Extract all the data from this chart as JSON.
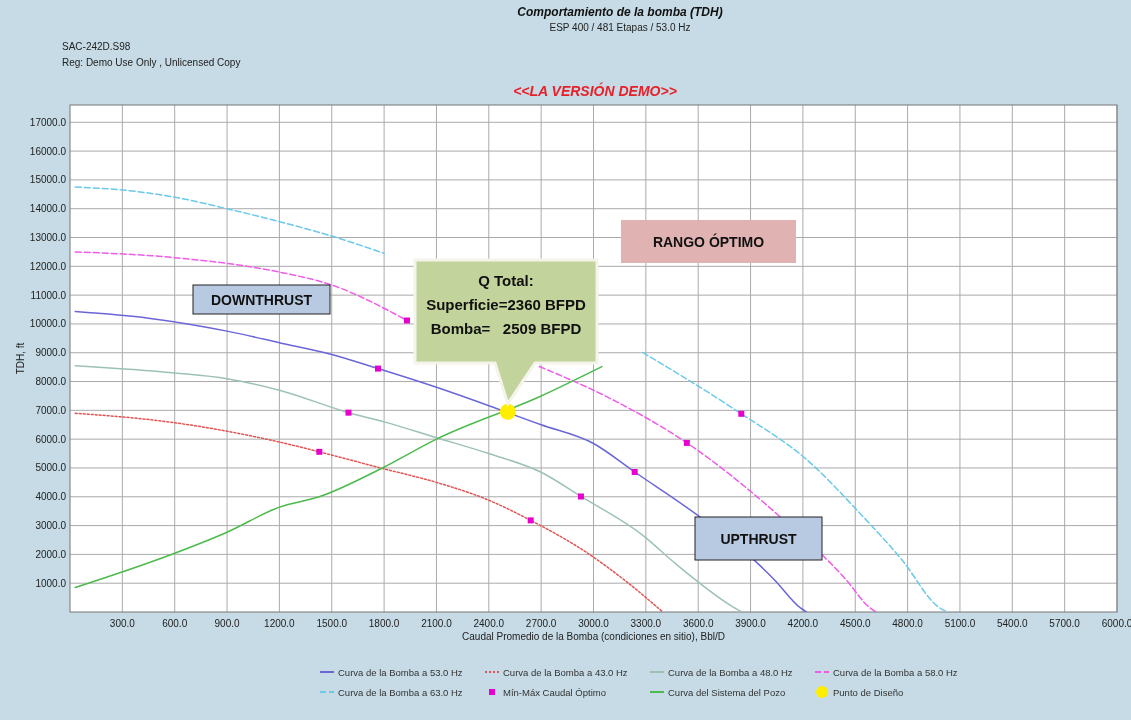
{
  "chart_data": {
    "type": "line",
    "title": "Comportamiento de la bomba (TDH)",
    "subtitle": "ESP 400 / 481 Etapas / 53.0 Hz",
    "xlabel": "Caudal Promedio de la Bomba (condiciones en sitio), Bbl/D",
    "ylabel": "TDH, ft",
    "xlim": [
      0,
      6000
    ],
    "ylim": [
      0,
      17600
    ],
    "xticks": [
      {
        "value": 300,
        "label": "300.0"
      },
      {
        "value": 600,
        "label": "600.0"
      },
      {
        "value": 900,
        "label": "900.0"
      },
      {
        "value": 1200,
        "label": "1200.0"
      },
      {
        "value": 1500,
        "label": "1500.0"
      },
      {
        "value": 1800,
        "label": "1800.0"
      },
      {
        "value": 2100,
        "label": "2100.0"
      },
      {
        "value": 2400,
        "label": "2400.0"
      },
      {
        "value": 2700,
        "label": "2700.0"
      },
      {
        "value": 3000,
        "label": "3000.0"
      },
      {
        "value": 3300,
        "label": "3300.0"
      },
      {
        "value": 3600,
        "label": "3600.0"
      },
      {
        "value": 3900,
        "label": "3900.0"
      },
      {
        "value": 4200,
        "label": "4200.0"
      },
      {
        "value": 4500,
        "label": "4500.0"
      },
      {
        "value": 4800,
        "label": "4800.0"
      },
      {
        "value": 5100,
        "label": "5100.0"
      },
      {
        "value": 5400,
        "label": "5400.0"
      },
      {
        "value": 5700,
        "label": "5700.0"
      },
      {
        "value": 6000,
        "label": "6000.0"
      }
    ],
    "yticks": [
      {
        "value": 1000,
        "label": "1000.0"
      },
      {
        "value": 2000,
        "label": "2000.0"
      },
      {
        "value": 3000,
        "label": "3000.0"
      },
      {
        "value": 4000,
        "label": "4000.0"
      },
      {
        "value": 5000,
        "label": "5000.0"
      },
      {
        "value": 6000,
        "label": "6000.0"
      },
      {
        "value": 7000,
        "label": "7000.0"
      },
      {
        "value": 8000,
        "label": "8000.0"
      },
      {
        "value": 9000,
        "label": "9000.0"
      },
      {
        "value": 10000,
        "label": "10000.0"
      },
      {
        "value": 11000,
        "label": "11000.0"
      },
      {
        "value": 12000,
        "label": "12000.0"
      },
      {
        "value": 13000,
        "label": "13000.0"
      },
      {
        "value": 14000,
        "label": "14000.0"
      },
      {
        "value": 15000,
        "label": "15000.0"
      },
      {
        "value": 16000,
        "label": "16000.0"
      },
      {
        "value": 17000,
        "label": "17000.0"
      }
    ],
    "grid": true,
    "legend": "bottom",
    "series": [
      {
        "name": "Curva de la Bomba a 53.0 Hz",
        "color": "#6a66d8",
        "line_style": "solid",
        "x": [
          30,
          450,
          900,
          1200,
          1500,
          1765,
          2100,
          2700,
          3000,
          3236,
          3596,
          3921,
          4035,
          4184,
          4220
        ],
        "values": [
          10430,
          10200,
          9750,
          9350,
          8940,
          8450,
          7800,
          6500,
          5850,
          4860,
          3360,
          1800,
          1130,
          150,
          0
        ]
      },
      {
        "name": "Curva de la Bomba a 43.0 Hz",
        "color": "#e05555",
        "line_style": "dotted",
        "x": [
          30,
          600,
          1200,
          1429,
          1780,
          2100,
          2400,
          2640,
          2957,
          3200,
          3397
        ],
        "values": [
          6900,
          6570,
          5900,
          5560,
          5000,
          4500,
          3880,
          3180,
          2080,
          1000,
          0
        ]
      },
      {
        "name": "Curva de la Bomba a 48.0 Hz",
        "color": "#9cc2b4",
        "line_style": "solid",
        "x": [
          30,
          600,
          900,
          1200,
          1596,
          1800,
          2100,
          2400,
          2700,
          2928,
          3283,
          3466,
          3796,
          3850
        ],
        "values": [
          8550,
          8300,
          8100,
          7700,
          6920,
          6600,
          6050,
          5500,
          4850,
          4010,
          2660,
          1700,
          190,
          0
        ]
      },
      {
        "name": "Curva de la Bomba a 58.0 Hz",
        "color": "#ee5ce8",
        "line_style": "dashed",
        "x": [
          30,
          600,
          1200,
          1500,
          1931,
          2300,
          2690,
          3100,
          3535,
          4059,
          4446,
          4583,
          4620
        ],
        "values": [
          12500,
          12300,
          11800,
          11350,
          10120,
          null,
          8520,
          7400,
          5870,
          3360,
          1130,
          150,
          0
        ]
      },
      {
        "name": "Curva de la Bomba a 63.0 Hz",
        "color": "#6cc9e8",
        "line_style": "dashed",
        "x": [
          30,
          300,
          600,
          900,
          1200,
          1500,
          1800,
          2100,
          2700,
          3282,
          3847,
          4218,
          4537,
          4765,
          4982,
          5030
        ],
        "values": [
          14750,
          14650,
          14400,
          14000,
          13550,
          13050,
          12450,
          null,
          null,
          9010,
          6880,
          5310,
          3360,
          1830,
          150,
          0
        ]
      },
      {
        "name": "Mín-Máx Caudal Óptimo",
        "type": "scatter",
        "marker": "square",
        "color": "#e600d0",
        "x": [
          1931,
          3847,
          1765,
          3236,
          1596,
          2928,
          1429,
          2640,
          3535
        ],
        "values": [
          10120,
          6880,
          8450,
          4860,
          6920,
          4010,
          5560,
          3180,
          5870
        ]
      },
      {
        "name": "Curva del Sistema del Pozo",
        "color": "#4cba4c",
        "line_style": "solid",
        "x": [
          30,
          600,
          900,
          1200,
          1428,
          1790,
          2100,
          2700,
          3048
        ],
        "values": [
          850,
          2040,
          2770,
          3640,
          4000,
          5000,
          6000,
          7500,
          8520
        ]
      },
      {
        "name": "Punto de Diseño",
        "type": "scatter",
        "marker": "circle",
        "color": "#ffee00",
        "x": [
          2509
        ],
        "values": [
          6950
        ]
      }
    ],
    "annotations": [
      "SAC-242D.S98",
      "Reg: Demo Use Only ,  Unlicensed Copy",
      "<<LA VERSIÓN DEMO>>",
      "DOWNTHRUST",
      "UPTHRUST",
      "RANGO ÓPTIMO",
      "Q Total:\nSuperficie=2360 BFPD\nBomba=   2509 BFPD"
    ]
  }
}
